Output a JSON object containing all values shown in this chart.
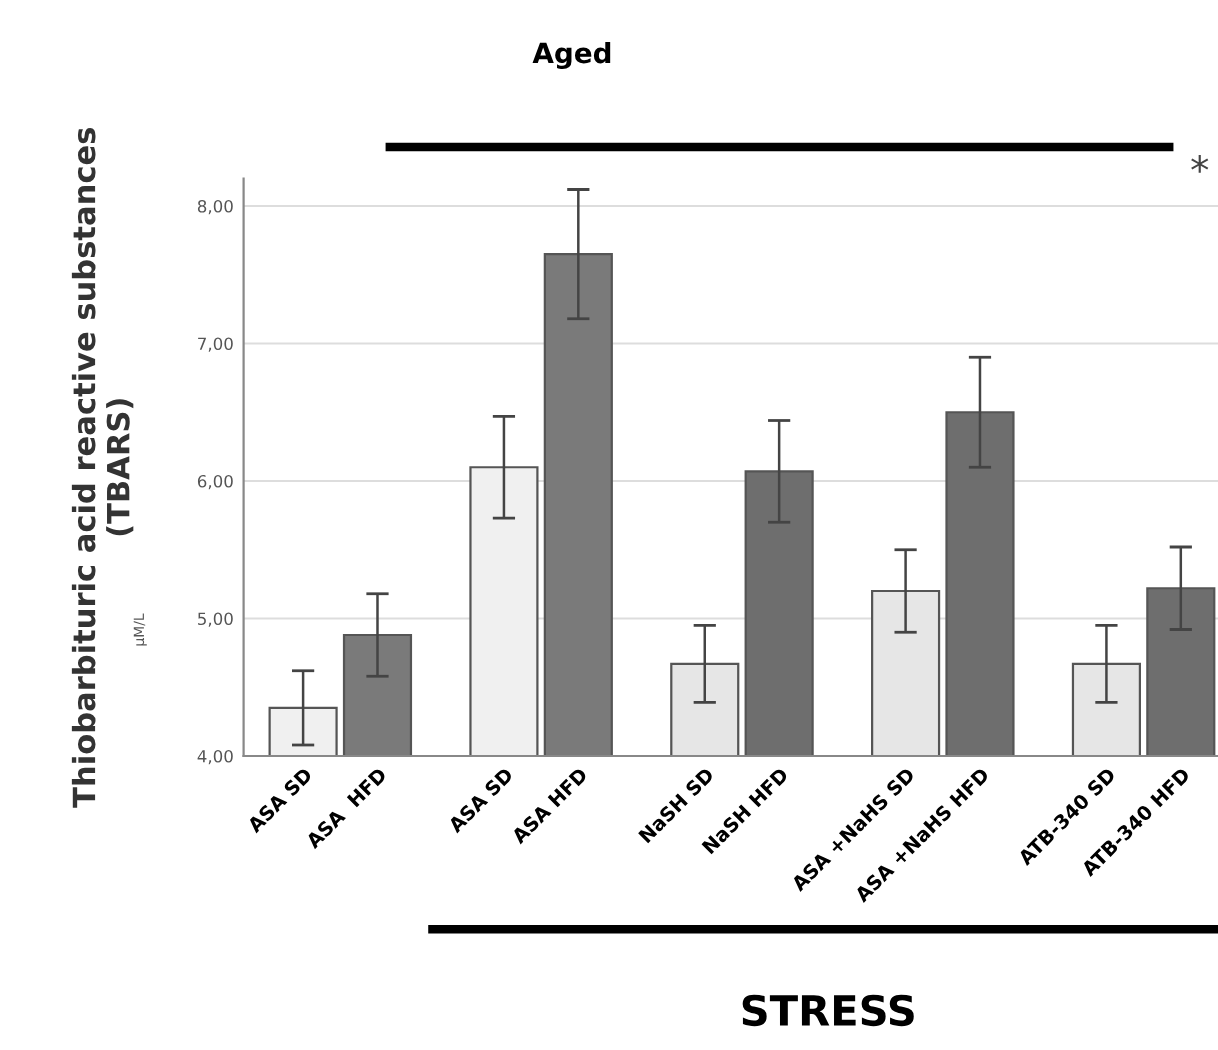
{
  "chart_data": {
    "type": "bar",
    "title": "Aged",
    "ylabel": "Thiobarbituric acid reactive substances\n(TBARS)",
    "categories": [
      "ASA SD",
      "ASA  HFD",
      "ASA SD",
      "ASA HFD",
      "NaSH SD",
      "NaSH HFD",
      "ASA +NaHS SD",
      "ASA +NaHS HFD",
      "ATB-340 SD",
      "ATB-340 HFD"
    ],
    "values": [
      4.35,
      4.88,
      6.1,
      7.65,
      4.67,
      6.07,
      5.2,
      6.5,
      4.67,
      5.22
    ],
    "errors": [
      0.27,
      0.3,
      0.37,
      0.47,
      0.28,
      0.37,
      0.3,
      0.4,
      0.28,
      0.3
    ],
    "colors": [
      "#f0f0f0",
      "#7a7a7a",
      "#f0f0f0",
      "#7a7a7a",
      "#e6e6e6",
      "#6e6e6e",
      "#e6e6e6",
      "#6e6e6e",
      "#e6e6e6",
      "#6e6e6e"
    ],
    "ylim": [
      4,
      8.2
    ],
    "yticks": [
      {
        "value": 4,
        "label": "4,00"
      },
      {
        "value": 5,
        "label": "5,00"
      },
      {
        "value": 6,
        "label": "6,00"
      },
      {
        "value": 7,
        "label": "7,00"
      },
      {
        "value": 8,
        "label": "8,00"
      }
    ],
    "grid": "y",
    "annotations": [
      "*",
      "STRESS",
      "µM/L"
    ]
  }
}
